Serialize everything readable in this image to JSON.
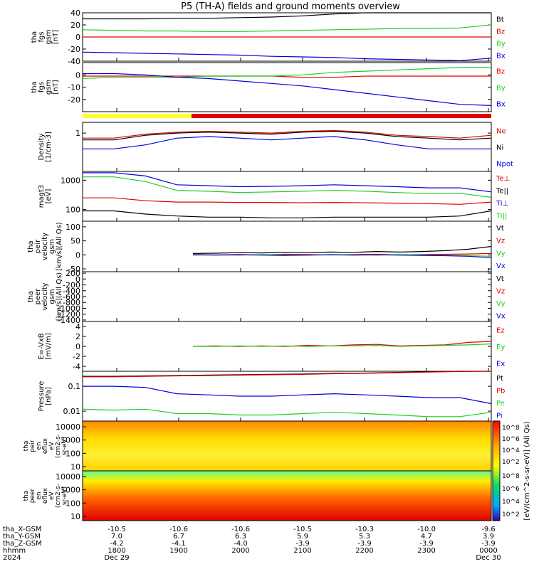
{
  "title": "P5 (TH-A) fields and ground moments overview",
  "colors": {
    "black": "#000000",
    "red": "#e00000",
    "green": "#22cc22",
    "blue": "#0000dd",
    "yellow": "#ffff33"
  },
  "chart_data": {
    "type": "line",
    "x_ticks": [
      "1800",
      "1900",
      "2000",
      "2100",
      "2200",
      "2300",
      "0000"
    ],
    "x_start": "1800",
    "x_end": "0000",
    "panels": [
      {
        "id": "fgs-gsm",
        "ylabel": [
          "tha",
          "fgs",
          "gsm",
          "[nT]"
        ],
        "ylim": [
          -40,
          40
        ],
        "ticks": [
          40,
          20,
          0,
          -20,
          -40
        ],
        "log": false,
        "series": [
          {
            "name": "Bt",
            "color": "black",
            "values": [
              30,
              30,
              30,
              31,
              31,
              32,
              33,
              35,
              38,
              40,
              41,
              41,
              42,
              44
            ]
          },
          {
            "name": "Bz",
            "color": "red",
            "values": [
              0,
              0,
              0,
              0,
              0,
              0,
              0,
              0,
              0,
              0,
              0,
              0,
              0,
              0
            ]
          },
          {
            "name": "By",
            "color": "green",
            "values": [
              12,
              11,
              10,
              10,
              9,
              9,
              10,
              11,
              12,
              13,
              14,
              14,
              15,
              20
            ]
          },
          {
            "name": "Bx",
            "color": "blue",
            "values": [
              -25,
              -26,
              -27,
              -28,
              -29,
              -30,
              -32,
              -33,
              -34,
              -36,
              -37,
              -38,
              -39,
              -35
            ]
          }
        ]
      },
      {
        "id": "fgs-gsm-zoom",
        "ylabel": [
          "tha",
          "fgs",
          "gsm",
          "[nT]"
        ],
        "ylim": [
          -30,
          10
        ],
        "ticks": [
          0,
          -10,
          -20
        ],
        "log": false,
        "series": [
          {
            "name": "Bz",
            "color": "red",
            "values": [
              -1,
              -1,
              -1,
              -1,
              -1,
              -1,
              -1,
              -2,
              -2,
              -1,
              -1,
              -1,
              -1,
              -1
            ]
          },
          {
            "name": "By",
            "color": "green",
            "values": [
              -3,
              -2,
              -2,
              -2,
              -1,
              -1,
              -1,
              0,
              2,
              3,
              4,
              5,
              6,
              6
            ]
          },
          {
            "name": "Bx",
            "color": "blue",
            "values": [
              1,
              1,
              0,
              -2,
              -3,
              -5,
              -7,
              -9,
              -12,
              -15,
              -18,
              -21,
              -24,
              -25
            ]
          }
        ]
      },
      {
        "id": "density",
        "ylabel": [
          "Density",
          "[1/cm-3]"
        ],
        "ylim": [
          0.02,
          3
        ],
        "ticks": [
          1
        ],
        "log": true,
        "series": [
          {
            "name": "Ne",
            "color": "red",
            "values": [
              0.6,
              0.6,
              0.9,
              1.1,
              1.2,
              1.1,
              1.0,
              1.2,
              1.3,
              1.1,
              0.8,
              0.7,
              0.6,
              0.8
            ]
          },
          {
            "name": "Ni",
            "color": "black",
            "values": [
              0.5,
              0.5,
              0.8,
              1.0,
              1.1,
              1.0,
              0.9,
              1.1,
              1.2,
              1.0,
              0.7,
              0.6,
              0.5,
              0.6
            ]
          },
          {
            "name": "Npot",
            "color": "blue",
            "values": [
              0.2,
              0.2,
              0.3,
              0.6,
              0.7,
              0.6,
              0.5,
              0.6,
              0.7,
              0.5,
              0.3,
              0.2,
              0.2,
              0.2
            ]
          }
        ]
      },
      {
        "id": "temperature",
        "ylabel": [
          "magt3",
          "[eV]"
        ],
        "ylim": [
          40,
          2000
        ],
        "ticks": [
          1000,
          100
        ],
        "log": true,
        "series": [
          {
            "name": "Te⊥",
            "color": "red",
            "values": [
              250,
              250,
              200,
              180,
              180,
              175,
              175,
              170,
              175,
              170,
              165,
              160,
              150,
              180
            ]
          },
          {
            "name": "Te||",
            "color": "black",
            "values": [
              90,
              90,
              70,
              60,
              55,
              55,
              52,
              52,
              55,
              55,
              55,
              55,
              60,
              90
            ]
          },
          {
            "name": "Ti⊥",
            "color": "blue",
            "values": [
              1800,
              1800,
              1400,
              700,
              650,
              600,
              620,
              650,
              700,
              650,
              600,
              550,
              550,
              400
            ]
          },
          {
            "name": "Ti||",
            "color": "green",
            "values": [
              1300,
              1300,
              900,
              450,
              420,
              380,
              400,
              420,
              450,
              420,
              380,
              350,
              360,
              260
            ]
          }
        ]
      },
      {
        "id": "peir-velocity",
        "ylabel": [
          "tha",
          "peir",
          "velocity",
          "gsm",
          "[km/s](All Qs)"
        ],
        "ylim": [
          -60,
          120
        ],
        "ticks": [
          100,
          50,
          0,
          -50
        ],
        "log": false,
        "series": [
          {
            "name": "Vt",
            "color": "black",
            "values": [
              5,
              6,
              8,
              7,
              9,
              8,
              10,
              9,
              12,
              10,
              12,
              15,
              20,
              30
            ]
          },
          {
            "name": "Vz",
            "color": "red",
            "values": [
              1,
              0,
              1,
              0,
              2,
              1,
              0,
              1,
              2,
              0,
              1,
              2,
              3,
              5
            ]
          },
          {
            "name": "Vy",
            "color": "green",
            "values": [
              -1,
              0,
              -1,
              1,
              0,
              -1,
              1,
              0,
              -1,
              1,
              0,
              -2,
              -3,
              -5
            ]
          },
          {
            "name": "Vx",
            "color": "blue",
            "values": [
              0,
              -1,
              0,
              -1,
              -2,
              -1,
              0,
              -1,
              0,
              -1,
              -2,
              -3,
              -5,
              -10
            ]
          }
        ]
      },
      {
        "id": "peer-velocity",
        "ylabel": [
          "tha",
          "peer",
          "velocity",
          "gsm",
          "[km/s](All Qs)"
        ],
        "ylim": [
          -1450,
          250
        ],
        "ticks": [
          200,
          0,
          -200,
          -400,
          -600,
          -800,
          -1000,
          -1200,
          -1400
        ],
        "log": false,
        "series": [
          {
            "name": "Vt",
            "color": "black",
            "values": []
          },
          {
            "name": "Vz",
            "color": "red",
            "values": []
          },
          {
            "name": "Vy",
            "color": "green",
            "values": []
          },
          {
            "name": "Vx",
            "color": "blue",
            "values": []
          }
        ]
      },
      {
        "id": "efield",
        "ylabel": [
          "E=-VxB",
          "[mV/m]"
        ],
        "ylim": [
          -5,
          5
        ],
        "ticks": [
          4,
          2,
          0,
          -2,
          -4
        ],
        "log": false,
        "series": [
          {
            "name": "Ez",
            "color": "red",
            "values": [
              0,
              0.1,
              0,
              0.1,
              0,
              0.2,
              0.1,
              0.3,
              0.4,
              0.1,
              0.2,
              0.3,
              0.8,
              1.0
            ]
          },
          {
            "name": "Ey",
            "color": "green",
            "values": [
              0,
              0,
              0.1,
              0,
              0.1,
              0,
              0.1,
              0.1,
              0.2,
              0,
              0.1,
              0.2,
              0.3,
              0.5
            ]
          },
          {
            "name": "Ex",
            "color": "blue",
            "values": []
          }
        ]
      },
      {
        "id": "pressure",
        "ylabel": [
          "Pressure",
          "[nPa]"
        ],
        "ylim": [
          0.004,
          0.4
        ],
        "ticks": [
          0.1,
          0.01
        ],
        "log": true,
        "series": [
          {
            "name": "Pt",
            "color": "black",
            "values": [
              0.25,
              0.25,
              0.26,
              0.27,
              0.28,
              0.29,
              0.3,
              0.31,
              0.33,
              0.34,
              0.36,
              0.38,
              0.4,
              0.42
            ]
          },
          {
            "name": "Pb",
            "color": "red",
            "values": [
              0.24,
              0.24,
              0.25,
              0.26,
              0.27,
              0.28,
              0.29,
              0.3,
              0.32,
              0.33,
              0.35,
              0.37,
              0.39,
              0.41
            ]
          },
          {
            "name": "Pe",
            "color": "green",
            "values": [
              0.012,
              0.011,
              0.012,
              0.008,
              0.008,
              0.007,
              0.007,
              0.008,
              0.009,
              0.008,
              0.007,
              0.006,
              0.006,
              0.009
            ]
          },
          {
            "name": "Pi",
            "color": "blue",
            "values": [
              0.1,
              0.1,
              0.09,
              0.05,
              0.045,
              0.04,
              0.04,
              0.045,
              0.05,
              0.045,
              0.04,
              0.035,
              0.035,
              0.02
            ]
          }
        ]
      }
    ],
    "spectrograms": [
      {
        "id": "peir-eflux",
        "ylabel": [
          "tha",
          "peir",
          "en",
          "eflux",
          "eV",
          "(cm2-s-",
          "sr-eV)"
        ],
        "ticks": [
          "10000",
          "1000",
          "100",
          "10"
        ]
      },
      {
        "id": "peer-eflux",
        "ylabel": [
          "tha",
          "peer",
          "en",
          "eflux",
          "eV",
          "(cm2-s-",
          "sr-eV)"
        ],
        "ticks": [
          "10000",
          "1000",
          "100",
          "10"
        ]
      }
    ],
    "colorbar": {
      "label": "[eV/(cm^2-s-sr-eV)] (All Qs)",
      "ticks": [
        "10^8",
        "10^6",
        "10^4",
        "10^2"
      ],
      "ticks_lower": [
        "10^8",
        "10^6",
        "10^4",
        "10^2"
      ]
    },
    "footer": [
      {
        "label": "tha_X-GSM",
        "values": [
          "-10.5",
          "-10.6",
          "-10.6",
          "-10.5",
          "-10.3",
          "-10.0",
          "-9.6"
        ]
      },
      {
        "label": "tha_Y-GSM",
        "values": [
          "7.0",
          "6.7",
          "6.3",
          "5.9",
          "5.3",
          "4.7",
          "3.9"
        ]
      },
      {
        "label": "tha_Z-GSM",
        "values": [
          "-4.2",
          "-4.1",
          "-4.0",
          "-3.9",
          "-3.9",
          "-3.9",
          "-3.9"
        ]
      },
      {
        "label": "hhmm",
        "values": [
          "1800",
          "1900",
          "2000",
          "2100",
          "2200",
          "2300",
          "0000"
        ]
      },
      {
        "label": "2024",
        "values": [
          "Dec 29",
          "",
          "",
          "",
          "",
          "",
          "Dec 30"
        ]
      }
    ]
  }
}
